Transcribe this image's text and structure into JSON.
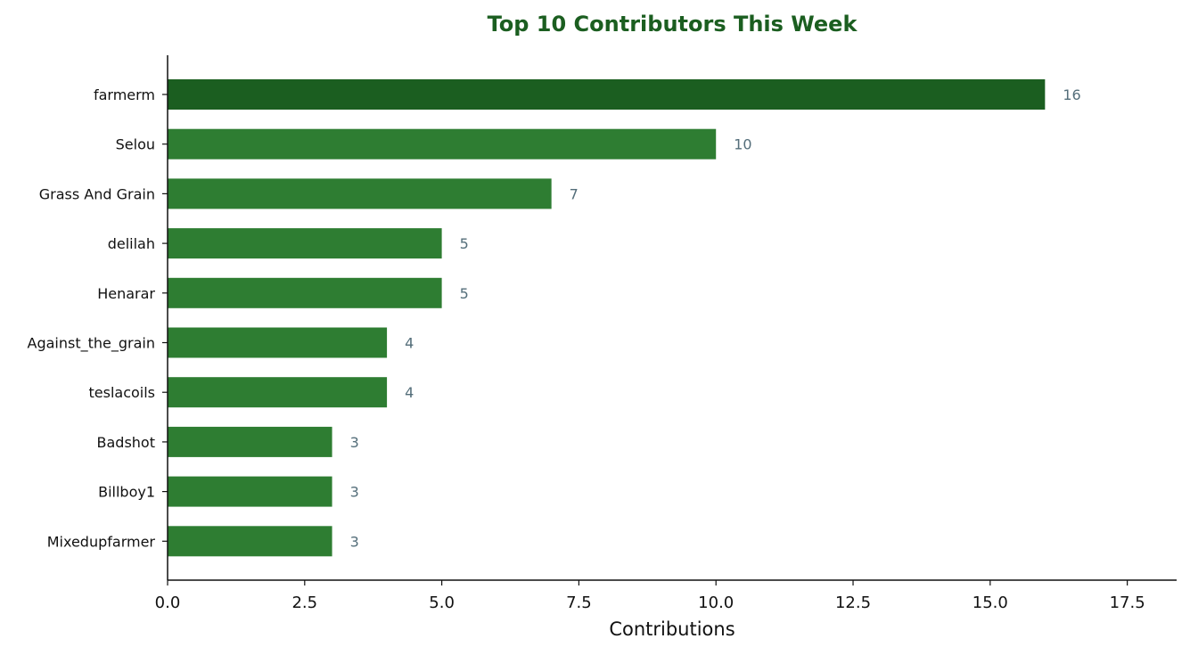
{
  "chart_data": {
    "type": "bar",
    "orientation": "horizontal",
    "title": "Top 10 Contributors This Week",
    "xlabel": "Contributions",
    "ylabel": "",
    "categories": [
      "farmerm",
      "Selou",
      "Grass And Grain",
      "delilah",
      "Henarar",
      "Against_the_grain",
      "teslacoils",
      "Badshot",
      "Billboy1",
      "Mixedupfarmer"
    ],
    "values": [
      16,
      10,
      7,
      5,
      5,
      4,
      4,
      3,
      3,
      3
    ],
    "value_labels": [
      "16",
      "10",
      "7",
      "5",
      "5",
      "4",
      "4",
      "3",
      "3",
      "3"
    ],
    "xlim": [
      0,
      18.4
    ],
    "xticks": [
      0,
      2.5,
      5,
      7.5,
      10,
      12.5,
      15,
      17.5
    ],
    "xtick_labels": [
      "0.0",
      "2.5",
      "5.0",
      "7.5",
      "10.0",
      "12.5",
      "15.0",
      "17.5"
    ],
    "grid": false,
    "legend": "none",
    "colors": {
      "highlight_bar": "#1b5e20",
      "bar": "#2e7d32",
      "title": "#1b5e20",
      "value_label": "#546e7a",
      "axis": "#111111"
    }
  }
}
